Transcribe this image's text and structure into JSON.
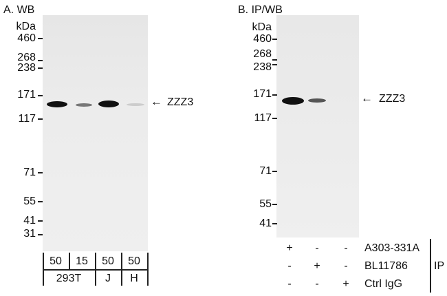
{
  "panel_a": {
    "title": "A. WB",
    "unit": "kDa",
    "markers": [
      "460",
      "268",
      "238",
      "171",
      "117",
      "71",
      "55",
      "41",
      "31"
    ],
    "target_label": "ZZZ3",
    "amounts": [
      "50",
      "15",
      "50",
      "50"
    ],
    "cell_lines": [
      "293T",
      "J",
      "H"
    ]
  },
  "panel_b": {
    "title": "B. IP/WB",
    "unit": "kDa",
    "markers": [
      "460",
      "268",
      "238",
      "171",
      "117",
      "71",
      "55",
      "41"
    ],
    "target_label": "ZZZ3",
    "ip_rows": [
      {
        "label": "A303-331A",
        "signs": [
          "+",
          "-",
          "-"
        ]
      },
      {
        "label": "BL11786",
        "signs": [
          "-",
          "+",
          "-"
        ]
      },
      {
        "label": "Ctrl IgG",
        "signs": [
          "-",
          "-",
          "+"
        ]
      }
    ],
    "ip_label": "IP"
  }
}
